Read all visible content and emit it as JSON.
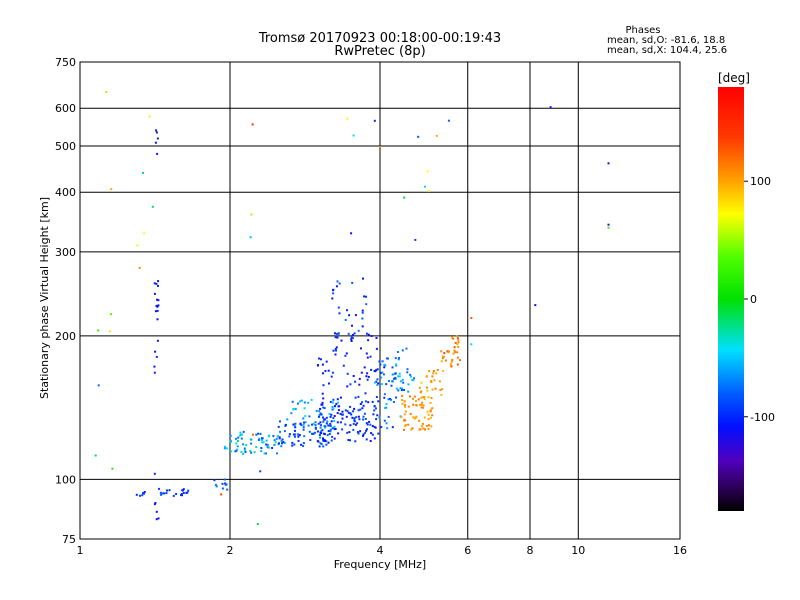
{
  "chart_data": {
    "type": "scatter",
    "title": "Tromsø 20170923 00:18:00-00:19:43",
    "subtitle": "RwPretec (8p)",
    "xlabel": "Frequency [MHz]",
    "ylabel": "Stationary phase Virtual Height [km]",
    "x_scale": "log",
    "y_scale": "log",
    "xlim": [
      1,
      16
    ],
    "ylim": [
      75,
      750
    ],
    "x_ticks": [
      1,
      2,
      4,
      6,
      8,
      10,
      16
    ],
    "y_ticks": [
      75,
      100,
      200,
      300,
      400,
      500,
      600,
      750
    ],
    "grid": true,
    "stats": {
      "header": "Phases",
      "line_o": "mean, sd,O: -81.6, 18.8",
      "line_x": "mean, sd,X: 104.4, 25.6"
    },
    "colorbar": {
      "label": "[deg]",
      "range": [
        -180,
        180
      ],
      "ticks": [
        100,
        0,
        -100
      ]
    },
    "point_groups": [
      {
        "f": [
          1.4,
          1.65
        ],
        "h": [
          92,
          96
        ],
        "n": 20,
        "phase": [
          -110,
          -80
        ]
      },
      {
        "f": [
          1.3,
          1.38
        ],
        "h": [
          92,
          95
        ],
        "n": 6,
        "phase": [
          -110,
          -80
        ]
      },
      {
        "f": [
          1.85,
          1.98
        ],
        "h": [
          94,
          100
        ],
        "n": 10,
        "phase": [
          -100,
          -60
        ]
      },
      {
        "f": [
          1.95,
          2.5
        ],
        "h": [
          113,
          126
        ],
        "n": 65,
        "phase": [
          -100,
          -20
        ]
      },
      {
        "f": [
          2.5,
          3.2
        ],
        "h": [
          117,
          133
        ],
        "n": 80,
        "phase": [
          -110,
          -60
        ]
      },
      {
        "f": [
          2.6,
          3.3
        ],
        "h": [
          128,
          147
        ],
        "n": 40,
        "phase": [
          -90,
          -30
        ]
      },
      {
        "f": [
          3.0,
          4.0
        ],
        "h": [
          120,
          147
        ],
        "n": 120,
        "phase": [
          -120,
          -80
        ]
      },
      {
        "f": [
          3.0,
          4.0
        ],
        "h": [
          145,
          205
        ],
        "n": 65,
        "phase": [
          -120,
          -90
        ]
      },
      {
        "f": [
          3.2,
          3.8
        ],
        "h": [
          200,
          265
        ],
        "n": 30,
        "phase": [
          -120,
          -70
        ]
      },
      {
        "f": [
          3.9,
          4.4
        ],
        "h": [
          128,
          180
        ],
        "n": 55,
        "phase": [
          -110,
          -40
        ]
      },
      {
        "f": [
          4.3,
          4.7
        ],
        "h": [
          150,
          190
        ],
        "n": 25,
        "phase": [
          -90,
          -40
        ]
      },
      {
        "f": [
          4.4,
          5.1
        ],
        "h": [
          127,
          150
        ],
        "n": 70,
        "phase": [
          95,
          125
        ]
      },
      {
        "f": [
          4.8,
          5.4
        ],
        "h": [
          150,
          170
        ],
        "n": 25,
        "phase": [
          90,
          120
        ]
      },
      {
        "f": [
          5.3,
          5.8
        ],
        "h": [
          172,
          200
        ],
        "n": 32,
        "phase": [
          95,
          140
        ]
      },
      {
        "f": [
          1.41,
          1.44
        ],
        "h": [
          160,
          280
        ],
        "n": 18,
        "phase": [
          -120,
          -100
        ]
      },
      {
        "f": [
          1.41,
          1.44
        ],
        "h": [
          480,
          580
        ],
        "n": 5,
        "phase": [
          -120,
          -100
        ]
      },
      {
        "f": [
          1.41,
          1.44
        ],
        "h": [
          78,
          130
        ],
        "n": 6,
        "phase": [
          -120,
          -100
        ]
      },
      {
        "f": [
          2.2,
          2.3
        ],
        "h": [
          75,
          560
        ],
        "n": 3,
        "phase": [
          -40,
          150
        ]
      },
      {
        "f": [
          3.4,
          5.3
        ],
        "h": [
          300,
          580
        ],
        "n": 10,
        "phase": [
          -120,
          120
        ]
      },
      {
        "f": [
          1.05,
          1.2
        ],
        "h": [
          95,
          660
        ],
        "n": 8,
        "phase": [
          -100,
          130
        ]
      },
      {
        "f": [
          1.3,
          1.4
        ],
        "h": [
          210,
          620
        ],
        "n": 6,
        "phase": [
          -20,
          120
        ]
      }
    ],
    "points": [
      {
        "f": 8.8,
        "h": 603,
        "phase": -110
      },
      {
        "f": 11.5,
        "h": 460,
        "phase": -110
      },
      {
        "f": 11.5,
        "h": 342,
        "phase": -120
      },
      {
        "f": 11.5,
        "h": 337,
        "phase": 20
      },
      {
        "f": 8.2,
        "h": 232,
        "phase": -110
      },
      {
        "f": 6.1,
        "h": 218,
        "phase": 130
      },
      {
        "f": 6.1,
        "h": 192,
        "phase": -40
      },
      {
        "f": 5.5,
        "h": 565,
        "phase": -80
      },
      {
        "f": 5.2,
        "h": 525,
        "phase": 100
      },
      {
        "f": 3.5,
        "h": 328,
        "phase": -110
      },
      {
        "f": 2.2,
        "h": 322,
        "phase": -50
      },
      {
        "f": 2.22,
        "h": 555,
        "phase": 150
      },
      {
        "f": 1.92,
        "h": 93,
        "phase": 140
      },
      {
        "f": 2.3,
        "h": 104,
        "phase": -90
      }
    ]
  }
}
